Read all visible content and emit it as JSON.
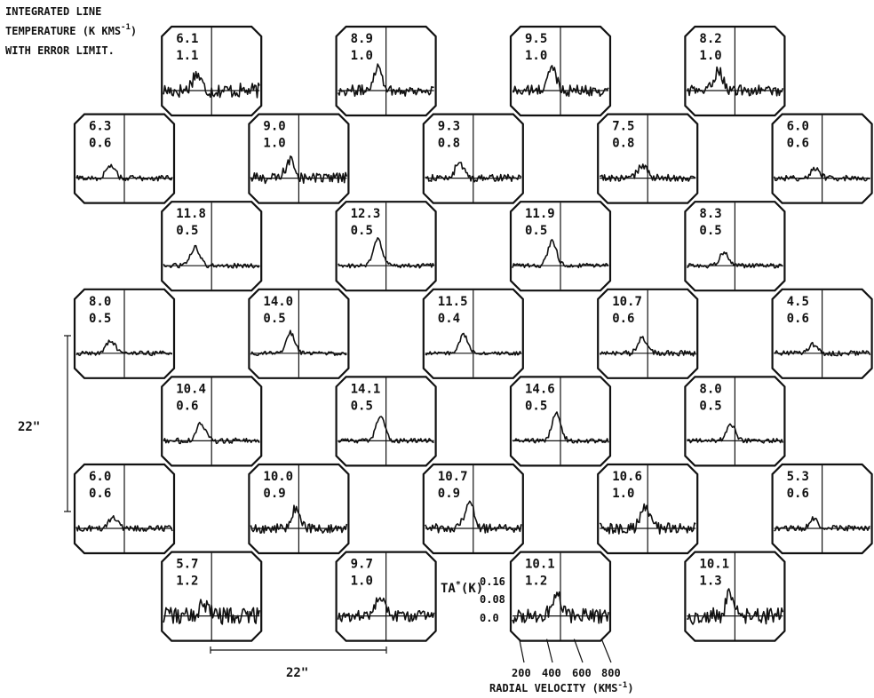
{
  "header": {
    "line1": "INTEGRATED LINE",
    "line2": "TEMPERATURE (K KMS",
    "line2_sup": "-1",
    "line2_close": ")",
    "line3": "WITH ERROR LIMIT."
  },
  "scale_vertical_label": "22\"",
  "scale_horizontal_label": "22\"",
  "key": {
    "y_axis_label": "TA",
    "y_axis_label_sup": "*",
    "y_axis_unit": "(K)",
    "y_ticks": [
      "0.16",
      "0.08",
      "0.0"
    ],
    "x_ticks": [
      "200",
      "400",
      "600",
      "800"
    ],
    "x_axis_label": "RADIAL VELOCITY (KMS",
    "x_axis_label_sup": "-1",
    "x_axis_label_close": ")"
  },
  "chart_data": {
    "type": "line",
    "description_grid": "spectra map",
    "x_range_kms": [
      150,
      850
    ],
    "y_range_K": [
      0,
      0.2
    ],
    "cells": [
      {
        "row": 0,
        "col": 1,
        "integrated": "6.1",
        "error": "1.1",
        "peak_velocity": 390,
        "peak_K": 0.09,
        "noise": 0.04
      },
      {
        "row": 0,
        "col": 3,
        "integrated": "8.9",
        "error": "1.0",
        "peak_velocity": 440,
        "peak_K": 0.13,
        "noise": 0.03
      },
      {
        "row": 0,
        "col": 5,
        "integrated": "9.5",
        "error": "1.0",
        "peak_velocity": 440,
        "peak_K": 0.12,
        "noise": 0.03
      },
      {
        "row": 0,
        "col": 7,
        "integrated": "8.2",
        "error": "1.0",
        "peak_velocity": 380,
        "peak_K": 0.11,
        "noise": 0.03
      },
      {
        "row": 1,
        "col": 0,
        "integrated": "6.3",
        "error": "0.6",
        "peak_velocity": 400,
        "peak_K": 0.07,
        "noise": 0.015
      },
      {
        "row": 1,
        "col": 2,
        "integrated": "9.0",
        "error": "1.0",
        "peak_velocity": 440,
        "peak_K": 0.1,
        "noise": 0.03
      },
      {
        "row": 1,
        "col": 4,
        "integrated": "9.3",
        "error": "0.8",
        "peak_velocity": 400,
        "peak_K": 0.08,
        "noise": 0.02
      },
      {
        "row": 1,
        "col": 6,
        "integrated": "7.5",
        "error": "0.8",
        "peak_velocity": 460,
        "peak_K": 0.07,
        "noise": 0.02
      },
      {
        "row": 1,
        "col": 8,
        "integrated": "6.0",
        "error": "0.6",
        "peak_velocity": 450,
        "peak_K": 0.05,
        "noise": 0.015
      },
      {
        "row": 2,
        "col": 1,
        "integrated": "11.8",
        "error": "0.5",
        "peak_velocity": 380,
        "peak_K": 0.1,
        "noise": 0.012
      },
      {
        "row": 2,
        "col": 3,
        "integrated": "12.3",
        "error": "0.5",
        "peak_velocity": 440,
        "peak_K": 0.14,
        "noise": 0.012
      },
      {
        "row": 2,
        "col": 5,
        "integrated": "11.9",
        "error": "0.5",
        "peak_velocity": 440,
        "peak_K": 0.13,
        "noise": 0.012
      },
      {
        "row": 2,
        "col": 7,
        "integrated": "8.3",
        "error": "0.5",
        "peak_velocity": 420,
        "peak_K": 0.07,
        "noise": 0.012
      },
      {
        "row": 3,
        "col": 0,
        "integrated": "8.0",
        "error": "0.5",
        "peak_velocity": 400,
        "peak_K": 0.07,
        "noise": 0.012
      },
      {
        "row": 3,
        "col": 2,
        "integrated": "14.0",
        "error": "0.5",
        "peak_velocity": 440,
        "peak_K": 0.11,
        "noise": 0.012
      },
      {
        "row": 3,
        "col": 4,
        "integrated": "11.5",
        "error": "0.4",
        "peak_velocity": 430,
        "peak_K": 0.1,
        "noise": 0.01
      },
      {
        "row": 3,
        "col": 6,
        "integrated": "10.7",
        "error": "0.6",
        "peak_velocity": 460,
        "peak_K": 0.09,
        "noise": 0.015
      },
      {
        "row": 3,
        "col": 8,
        "integrated": "4.5",
        "error": "0.6",
        "peak_velocity": 430,
        "peak_K": 0.05,
        "noise": 0.015
      },
      {
        "row": 4,
        "col": 1,
        "integrated": "10.4",
        "error": "0.6",
        "peak_velocity": 420,
        "peak_K": 0.1,
        "noise": 0.015
      },
      {
        "row": 4,
        "col": 3,
        "integrated": "14.1",
        "error": "0.5",
        "peak_velocity": 460,
        "peak_K": 0.14,
        "noise": 0.012
      },
      {
        "row": 4,
        "col": 5,
        "integrated": "14.6",
        "error": "0.5",
        "peak_velocity": 470,
        "peak_K": 0.15,
        "noise": 0.012
      },
      {
        "row": 4,
        "col": 7,
        "integrated": "8.0",
        "error": "0.5",
        "peak_velocity": 470,
        "peak_K": 0.09,
        "noise": 0.012
      },
      {
        "row": 5,
        "col": 0,
        "integrated": "6.0",
        "error": "0.6",
        "peak_velocity": 420,
        "peak_K": 0.06,
        "noise": 0.015
      },
      {
        "row": 5,
        "col": 2,
        "integrated": "10.0",
        "error": "0.9",
        "peak_velocity": 480,
        "peak_K": 0.11,
        "noise": 0.025
      },
      {
        "row": 5,
        "col": 4,
        "integrated": "10.7",
        "error": "0.9",
        "peak_velocity": 470,
        "peak_K": 0.15,
        "noise": 0.025
      },
      {
        "row": 5,
        "col": 6,
        "integrated": "10.6",
        "error": "1.0",
        "peak_velocity": 480,
        "peak_K": 0.11,
        "noise": 0.03
      },
      {
        "row": 5,
        "col": 8,
        "integrated": "5.3",
        "error": "0.6",
        "peak_velocity": 440,
        "peak_K": 0.05,
        "noise": 0.015
      },
      {
        "row": 6,
        "col": 1,
        "integrated": "5.7",
        "error": "1.2",
        "peak_velocity": 440,
        "peak_K": 0.07,
        "noise": 0.045
      },
      {
        "row": 6,
        "col": 3,
        "integrated": "9.7",
        "error": "1.0",
        "peak_velocity": 460,
        "peak_K": 0.11,
        "noise": 0.03
      },
      {
        "row": 6,
        "col": 5,
        "integrated": "10.1",
        "error": "1.2",
        "peak_velocity": 470,
        "peak_K": 0.12,
        "noise": 0.04
      },
      {
        "row": 6,
        "col": 7,
        "integrated": "10.1",
        "error": "1.3",
        "peak_velocity": 470,
        "peak_K": 0.13,
        "noise": 0.045
      }
    ]
  }
}
